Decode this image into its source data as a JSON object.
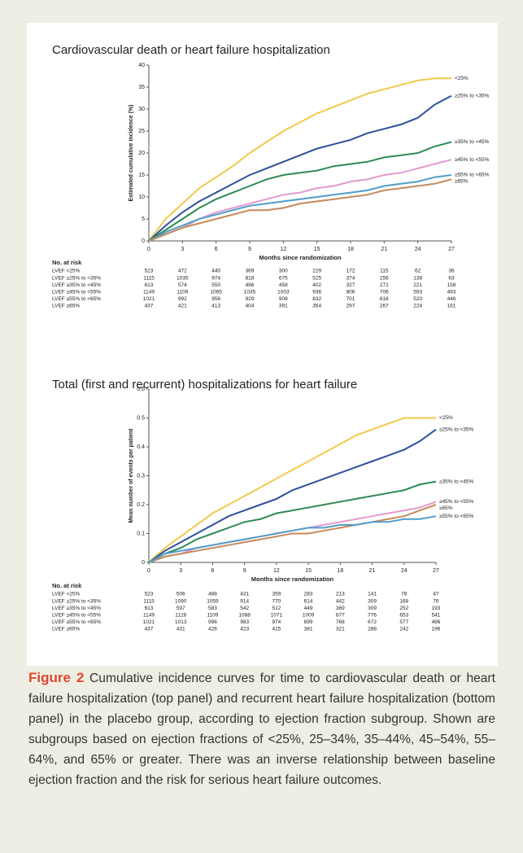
{
  "chart_data": [
    {
      "type": "line",
      "title": "Cardiovascular death or heart failure hospitalization",
      "x_label": "Months since randomization",
      "y_label": "Estimated cumulative incidence (%)",
      "x": [
        0,
        1.5,
        3,
        4.5,
        6,
        7.5,
        9,
        10.5,
        12,
        13.5,
        15,
        16.5,
        18,
        19.5,
        21,
        22.5,
        24,
        25.5,
        27
      ],
      "xlim": [
        0,
        27
      ],
      "xticks": [
        0,
        3,
        6,
        9,
        12,
        15,
        18,
        21,
        24,
        27
      ],
      "ylim": [
        0,
        40
      ],
      "yticks": [
        0,
        5,
        10,
        15,
        20,
        25,
        30,
        35,
        40
      ],
      "series": [
        {
          "name": "<25%",
          "color": "#f2c94c",
          "values": [
            0,
            5,
            8.5,
            12,
            14.5,
            17,
            20,
            22.5,
            25,
            27,
            29,
            30.5,
            32,
            33.5,
            34.5,
            35.5,
            36.5,
            37,
            37
          ]
        },
        {
          "name": "≥25% to <35%",
          "color": "#2e4f9c",
          "values": [
            0,
            3.5,
            6.5,
            9,
            11,
            13,
            15,
            16.5,
            18,
            19.5,
            21,
            22,
            23,
            24.5,
            25.5,
            26.5,
            28,
            31,
            33
          ]
        },
        {
          "name": "≥35% to <45%",
          "color": "#2f8a55",
          "values": [
            0,
            2.5,
            5,
            7.5,
            9.5,
            11,
            12.5,
            14,
            15,
            15.5,
            16,
            17,
            17.5,
            18,
            19,
            19.5,
            20,
            21.5,
            22.5
          ]
        },
        {
          "name": "≥45% to <55%",
          "color": "#e39ad2",
          "values": [
            0,
            1.5,
            3,
            5,
            6.5,
            7.5,
            8.5,
            9.5,
            10.5,
            11,
            12,
            12.5,
            13.5,
            14,
            15,
            15.5,
            16.5,
            17.5,
            18.5
          ]
        },
        {
          "name": "≥55% to <65%",
          "color": "#4f9ec8",
          "values": [
            0,
            2,
            3.5,
            5,
            6,
            7,
            8,
            8.5,
            9,
            9.5,
            10,
            10.5,
            11,
            11.5,
            12.5,
            13,
            13.5,
            14.5,
            15
          ]
        },
        {
          "name": "≥65%",
          "color": "#c7895c",
          "values": [
            0,
            1.5,
            3,
            4,
            5,
            6,
            7,
            7,
            7.5,
            8.5,
            9,
            9.5,
            10,
            10.5,
            11.5,
            12,
            12.5,
            13,
            14
          ]
        }
      ],
      "risk_table": {
        "header": "No. at risk",
        "rows": [
          {
            "label": "LVEF <25%",
            "values": [
              523,
              472,
              440,
              369,
              300,
              229,
              172,
              115,
              62,
              36
            ]
          },
          {
            "label": "LVEF ≥25% to <35%",
            "values": [
              1115,
              1035,
              974,
              818,
              675,
              525,
              374,
              256,
              138,
              63
            ]
          },
          {
            "label": "LVEF ≥35% to <45%",
            "values": [
              613,
              574,
              550,
              496,
              458,
              402,
              327,
              271,
              221,
              158
            ]
          },
          {
            "label": "LVEF ≥45% to <55%",
            "values": [
              1149,
              1109,
              1065,
              1035,
              1003,
              936,
              806,
              706,
              593,
              493
            ]
          },
          {
            "label": "LVEF ≥55% to <65%",
            "values": [
              1021,
              992,
              956,
              929,
              908,
              832,
              701,
              616,
              520,
              446
            ]
          },
          {
            "label": "LVEF ≥65%",
            "values": [
              437,
              421,
              413,
              404,
              391,
              354,
              297,
              267,
              224,
              181
            ]
          }
        ]
      }
    },
    {
      "type": "line",
      "title": "Total (first and recurrent) hospitalizations for heart failure",
      "x_label": "Months since randomization",
      "y_label": "Mean number of events per patient",
      "x": [
        0,
        1.5,
        3,
        4.5,
        6,
        7.5,
        9,
        10.5,
        12,
        13.5,
        15,
        16.5,
        18,
        19.5,
        21,
        22.5,
        24,
        25.5,
        27
      ],
      "xlim": [
        0,
        27
      ],
      "xticks": [
        0,
        3,
        6,
        9,
        12,
        15,
        18,
        21,
        24,
        27
      ],
      "ylim": [
        0,
        0.6
      ],
      "yticks": [
        0,
        0.1,
        0.2,
        0.3,
        0.4,
        0.5,
        0.6
      ],
      "series": [
        {
          "name": "<25%",
          "color": "#f2c94c",
          "values": [
            0,
            0.05,
            0.09,
            0.13,
            0.17,
            0.2,
            0.23,
            0.26,
            0.29,
            0.32,
            0.35,
            0.38,
            0.41,
            0.44,
            0.46,
            0.48,
            0.5,
            0.5,
            0.5
          ]
        },
        {
          "name": "≥25% to <35%",
          "color": "#2e4f9c",
          "values": [
            0,
            0.04,
            0.07,
            0.1,
            0.13,
            0.16,
            0.18,
            0.2,
            0.22,
            0.25,
            0.27,
            0.29,
            0.31,
            0.33,
            0.35,
            0.37,
            0.39,
            0.42,
            0.46
          ]
        },
        {
          "name": "≥35% to <45%",
          "color": "#2f8a55",
          "values": [
            0,
            0.03,
            0.05,
            0.08,
            0.1,
            0.12,
            0.14,
            0.15,
            0.17,
            0.18,
            0.19,
            0.2,
            0.21,
            0.22,
            0.23,
            0.24,
            0.25,
            0.27,
            0.28
          ]
        },
        {
          "name": "≥45% to <55%",
          "color": "#e39ad2",
          "values": [
            0,
            0.02,
            0.03,
            0.05,
            0.06,
            0.07,
            0.08,
            0.09,
            0.1,
            0.11,
            0.12,
            0.13,
            0.14,
            0.15,
            0.16,
            0.17,
            0.18,
            0.19,
            0.21
          ]
        },
        {
          "name": "≥65%",
          "color": "#c7895c",
          "values": [
            0,
            0.02,
            0.03,
            0.04,
            0.05,
            0.06,
            0.07,
            0.08,
            0.09,
            0.1,
            0.1,
            0.11,
            0.12,
            0.13,
            0.14,
            0.15,
            0.16,
            0.18,
            0.2
          ]
        },
        {
          "name": "≥55% to <65%",
          "color": "#4f9ec8",
          "values": [
            0,
            0.03,
            0.04,
            0.05,
            0.06,
            0.07,
            0.08,
            0.09,
            0.1,
            0.11,
            0.12,
            0.12,
            0.13,
            0.13,
            0.14,
            0.14,
            0.15,
            0.15,
            0.16
          ]
        }
      ],
      "risk_table": {
        "header": "No. at risk",
        "rows": [
          {
            "label": "LVEF <25%",
            "values": [
              523,
              506,
              488,
              431,
              359,
              283,
              213,
              141,
              78,
              47
            ]
          },
          {
            "label": "LVEF ≥25% to <35%",
            "values": [
              1115,
              1090,
              1059,
              914,
              770,
              614,
              442,
              309,
              168,
              76
            ]
          },
          {
            "label": "LVEF ≥35% to <45%",
            "values": [
              613,
              597,
              583,
              542,
              512,
              449,
              369,
              309,
              252,
              193
            ]
          },
          {
            "label": "LVEF ≥45% to <55%",
            "values": [
              1149,
              1128,
              1109,
              1088,
              1071,
              1009,
              877,
              776,
              653,
              541
            ]
          },
          {
            "label": "LVEF ≥55% to <65%",
            "values": [
              1021,
              1013,
              996,
              983,
              974,
              899,
              768,
              672,
              577,
              496
            ]
          },
          {
            "label": "LVEF ≥65%",
            "values": [
              437,
              431,
              426,
              423,
              415,
              381,
              321,
              288,
              242,
              196
            ]
          }
        ]
      }
    }
  ],
  "caption": {
    "label": "Figure 2",
    "text": "Cumulative incidence curves for time to cardiovascular death or heart failure hospitalization (top panel) and recurrent heart failure hospitalization (bottom panel) in the placebo group, according to ejection fraction subgroup. Shown are subgroups based on ejection fractions of <25%, 25–34%, 35–44%, 45–54%, 55–64%, and 65% or greater. There was an inverse relationship between baseline ejection fraction and the risk for serious heart failure outcomes."
  }
}
